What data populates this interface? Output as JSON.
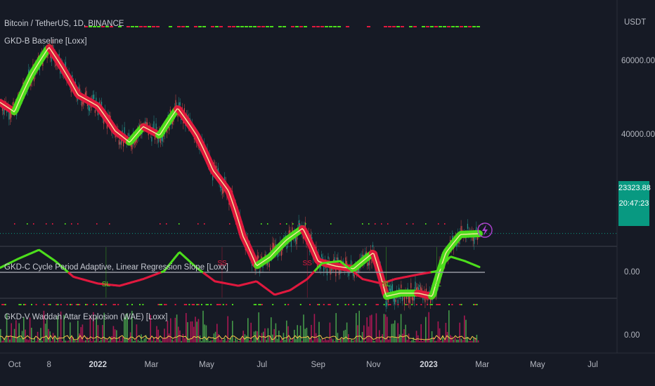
{
  "header": {
    "symbol_title": "Bitcoin / TetherUS, 1D, BINANCE",
    "indicator_b": "GKD-B Baseline [Loxx]",
    "indicator_c": "GKD-C Cycle Period Adaptive, Linear Regression Slope [Loxx]",
    "indicator_v": "GKD-V Waddah Attar Explosion (WAE) [Loxx]"
  },
  "axes": {
    "currency": "USDT",
    "price_ticks": [
      "60000.00",
      "40000.00"
    ],
    "osc_zero": "0.00",
    "wae_zero": "0.00",
    "last_price": "23323.88",
    "countdown": "20:47:23"
  },
  "chart_data": {
    "type": "line",
    "x_tick_labels": [
      {
        "label": "Oct",
        "bold": false
      },
      {
        "label": "8",
        "bold": false
      },
      {
        "label": "2022",
        "bold": true
      },
      {
        "label": "Mar",
        "bold": false
      },
      {
        "label": "May",
        "bold": false
      },
      {
        "label": "Jul",
        "bold": false
      },
      {
        "label": "Sep",
        "bold": false
      },
      {
        "label": "Nov",
        "bold": false
      },
      {
        "label": "2023",
        "bold": true
      },
      {
        "label": "Mar",
        "bold": false
      },
      {
        "label": "May",
        "bold": false
      },
      {
        "label": "Jul",
        "bold": false
      }
    ],
    "price_series": {
      "x": [
        "2021-09-15",
        "2021-10-01",
        "2021-10-20",
        "2021-11-08",
        "2021-11-25",
        "2021-12-10",
        "2022-01-01",
        "2022-01-20",
        "2022-02-05",
        "2022-02-20",
        "2022-03-10",
        "2022-03-30",
        "2022-04-20",
        "2022-05-08",
        "2022-05-25",
        "2022-06-10",
        "2022-06-25",
        "2022-07-10",
        "2022-07-28",
        "2022-08-15",
        "2022-09-01",
        "2022-09-20",
        "2022-10-10",
        "2022-11-01",
        "2022-11-15",
        "2022-12-01",
        "2022-12-20",
        "2023-01-05",
        "2023-01-20",
        "2023-02-05",
        "2023-02-25"
      ],
      "y": [
        48000,
        45500,
        56000,
        65000,
        57000,
        50000,
        47000,
        41000,
        38500,
        42000,
        40000,
        46500,
        40000,
        33000,
        29500,
        23000,
        19500,
        20500,
        22500,
        24000,
        20000,
        19500,
        19200,
        21000,
        16500,
        16800,
        16800,
        16500,
        21000,
        23200,
        23300
      ]
    },
    "osc_series": {
      "x": [
        "2021-09-15",
        "2021-10-05",
        "2021-10-28",
        "2021-11-15",
        "2021-12-05",
        "2022-01-01",
        "2022-01-25",
        "2022-02-20",
        "2022-03-15",
        "2022-04-01",
        "2022-04-20",
        "2022-05-10",
        "2022-06-05",
        "2022-06-25",
        "2022-07-15",
        "2022-08-01",
        "2022-08-20",
        "2022-09-05",
        "2022-09-25",
        "2022-10-20",
        "2022-11-10",
        "2022-11-25",
        "2022-12-20",
        "2023-01-10",
        "2023-01-25",
        "2023-02-10",
        "2023-02-28"
      ],
      "y": [
        0.2,
        0.6,
        1.0,
        0.5,
        -0.2,
        -0.5,
        -0.6,
        -0.3,
        0.05,
        0.9,
        0.2,
        -0.4,
        -0.6,
        -0.4,
        -1.0,
        -0.8,
        -0.3,
        0.4,
        0.5,
        -0.3,
        -0.5,
        -0.3,
        -0.1,
        0.05,
        0.7,
        0.5,
        0.2
      ]
    },
    "signals": [
      {
        "label": "SL",
        "x": "2022-01-10",
        "pos": "below"
      },
      {
        "label": "SS",
        "x": "2022-05-18",
        "pos": "above"
      },
      {
        "label": "SS",
        "x": "2022-08-20",
        "pos": "above"
      },
      {
        "label": "SL",
        "x": "2022-11-15",
        "pos": "below"
      },
      {
        "label": "SL",
        "x": "2023-01-10",
        "pos": "below"
      }
    ],
    "colors": {
      "bull": "#4cdd1c",
      "bear": "#e0193e",
      "candle_up": "#26a69a",
      "candle_down": "#ef5350",
      "accent": "#089981",
      "background": "#161a25"
    }
  }
}
